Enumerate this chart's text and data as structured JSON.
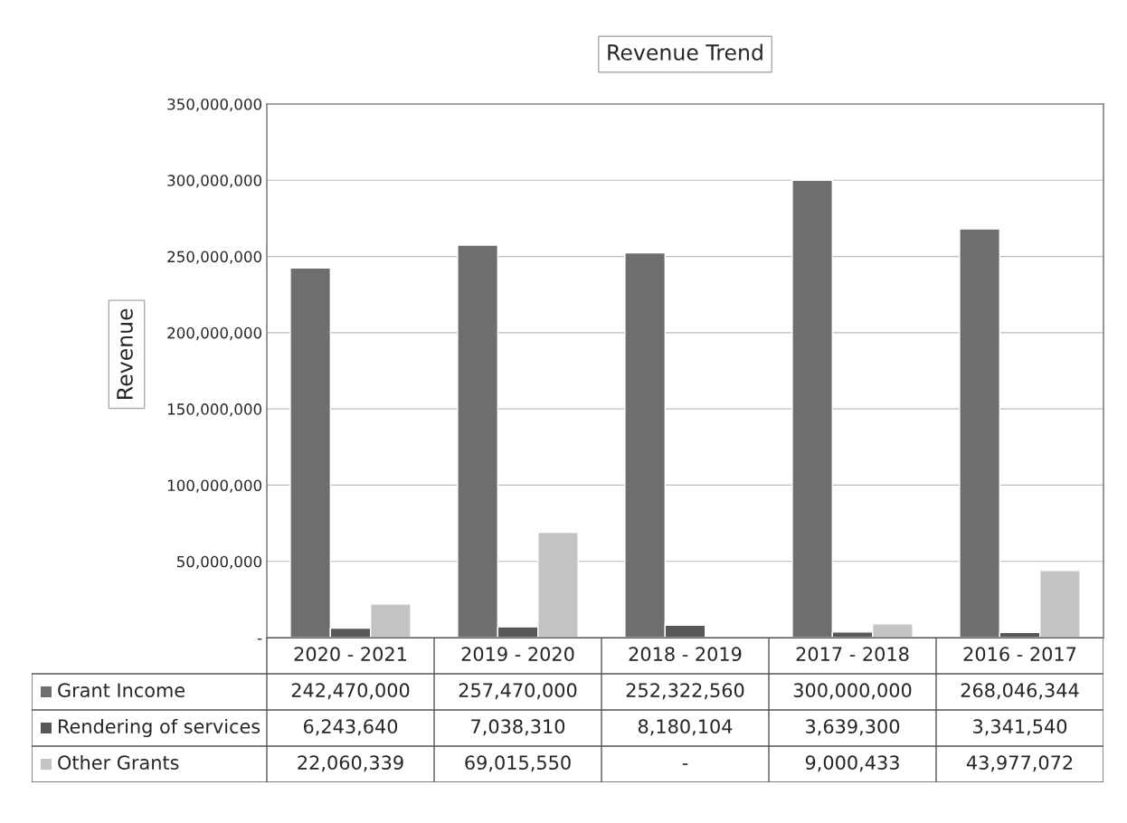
{
  "chart_data": {
    "type": "bar",
    "title": "Revenue Trend",
    "ylabel": "Revenue",
    "categories": [
      "2020 - 2021",
      "2019 - 2020",
      "2018 - 2019",
      "2017 - 2018",
      "2016 - 2017"
    ],
    "series": [
      {
        "name": "Grant Income",
        "color": "#6e6e6e",
        "values": [
          242470000,
          257470000,
          252322560,
          300000000,
          268046344
        ],
        "value_labels": [
          "242,470,000",
          "257,470,000",
          "252,322,560",
          "300,000,000",
          "268,046,344"
        ]
      },
      {
        "name": "Rendering of services",
        "color": "#575757",
        "values": [
          6243640,
          7038310,
          8180104,
          3639300,
          3341540
        ],
        "value_labels": [
          "6,243,640",
          "7,038,310",
          "8,180,104",
          "3,639,300",
          "3,341,540"
        ]
      },
      {
        "name": "Other Grants",
        "color": "#c4c4c4",
        "values": [
          22060339,
          69015550,
          null,
          9000433,
          43977072
        ],
        "value_labels": [
          "22,060,339",
          "69,015,550",
          "-",
          "9,000,433",
          "43,977,072"
        ]
      }
    ],
    "ylim": [
      0,
      350000000
    ],
    "yticks": [
      {
        "value": 0,
        "label": "-"
      },
      {
        "value": 50000000,
        "label": "50,000,000"
      },
      {
        "value": 100000000,
        "label": "100,000,000"
      },
      {
        "value": 150000000,
        "label": "150,000,000"
      },
      {
        "value": 200000000,
        "label": "200,000,000"
      },
      {
        "value": 250000000,
        "label": "250,000,000"
      },
      {
        "value": 300000000,
        "label": "300,000,000"
      },
      {
        "value": 350000000,
        "label": "350,000,000"
      }
    ],
    "grid": "y",
    "legend": "bottom"
  }
}
